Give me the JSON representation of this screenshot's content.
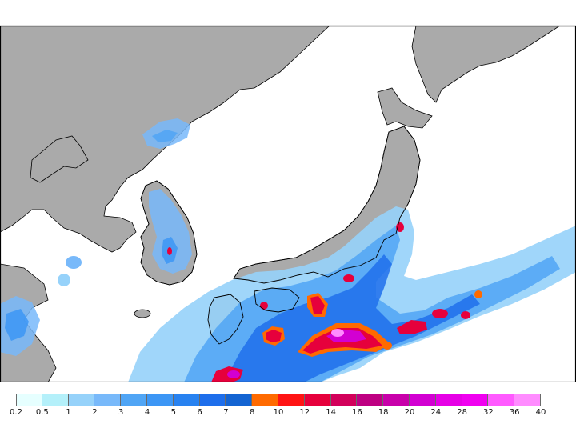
{
  "map": {
    "land_color": "#aaaaaa",
    "sea_color": "#ffffff",
    "coast_color": "#000000"
  },
  "legend": {
    "colors": [
      "#e6ffff",
      "#b4f0fa",
      "#96d2fa",
      "#78b9fa",
      "#50a5f5",
      "#3c96f5",
      "#2882f0",
      "#1e6eeb",
      "#1464d2",
      "#ff6a00",
      "#ff1414",
      "#e6003c",
      "#d2005a",
      "#be0082",
      "#c800aa",
      "#d200d2",
      "#e600e6",
      "#f000f0",
      "#ff5aff",
      "#ff8cff"
    ],
    "ticks": [
      "0.2",
      "0.5",
      "1",
      "2",
      "3",
      "4",
      "5",
      "6",
      "7",
      "8",
      "10",
      "12",
      "14",
      "16",
      "18",
      "20",
      "24",
      "28",
      "32",
      "36",
      "40"
    ]
  }
}
